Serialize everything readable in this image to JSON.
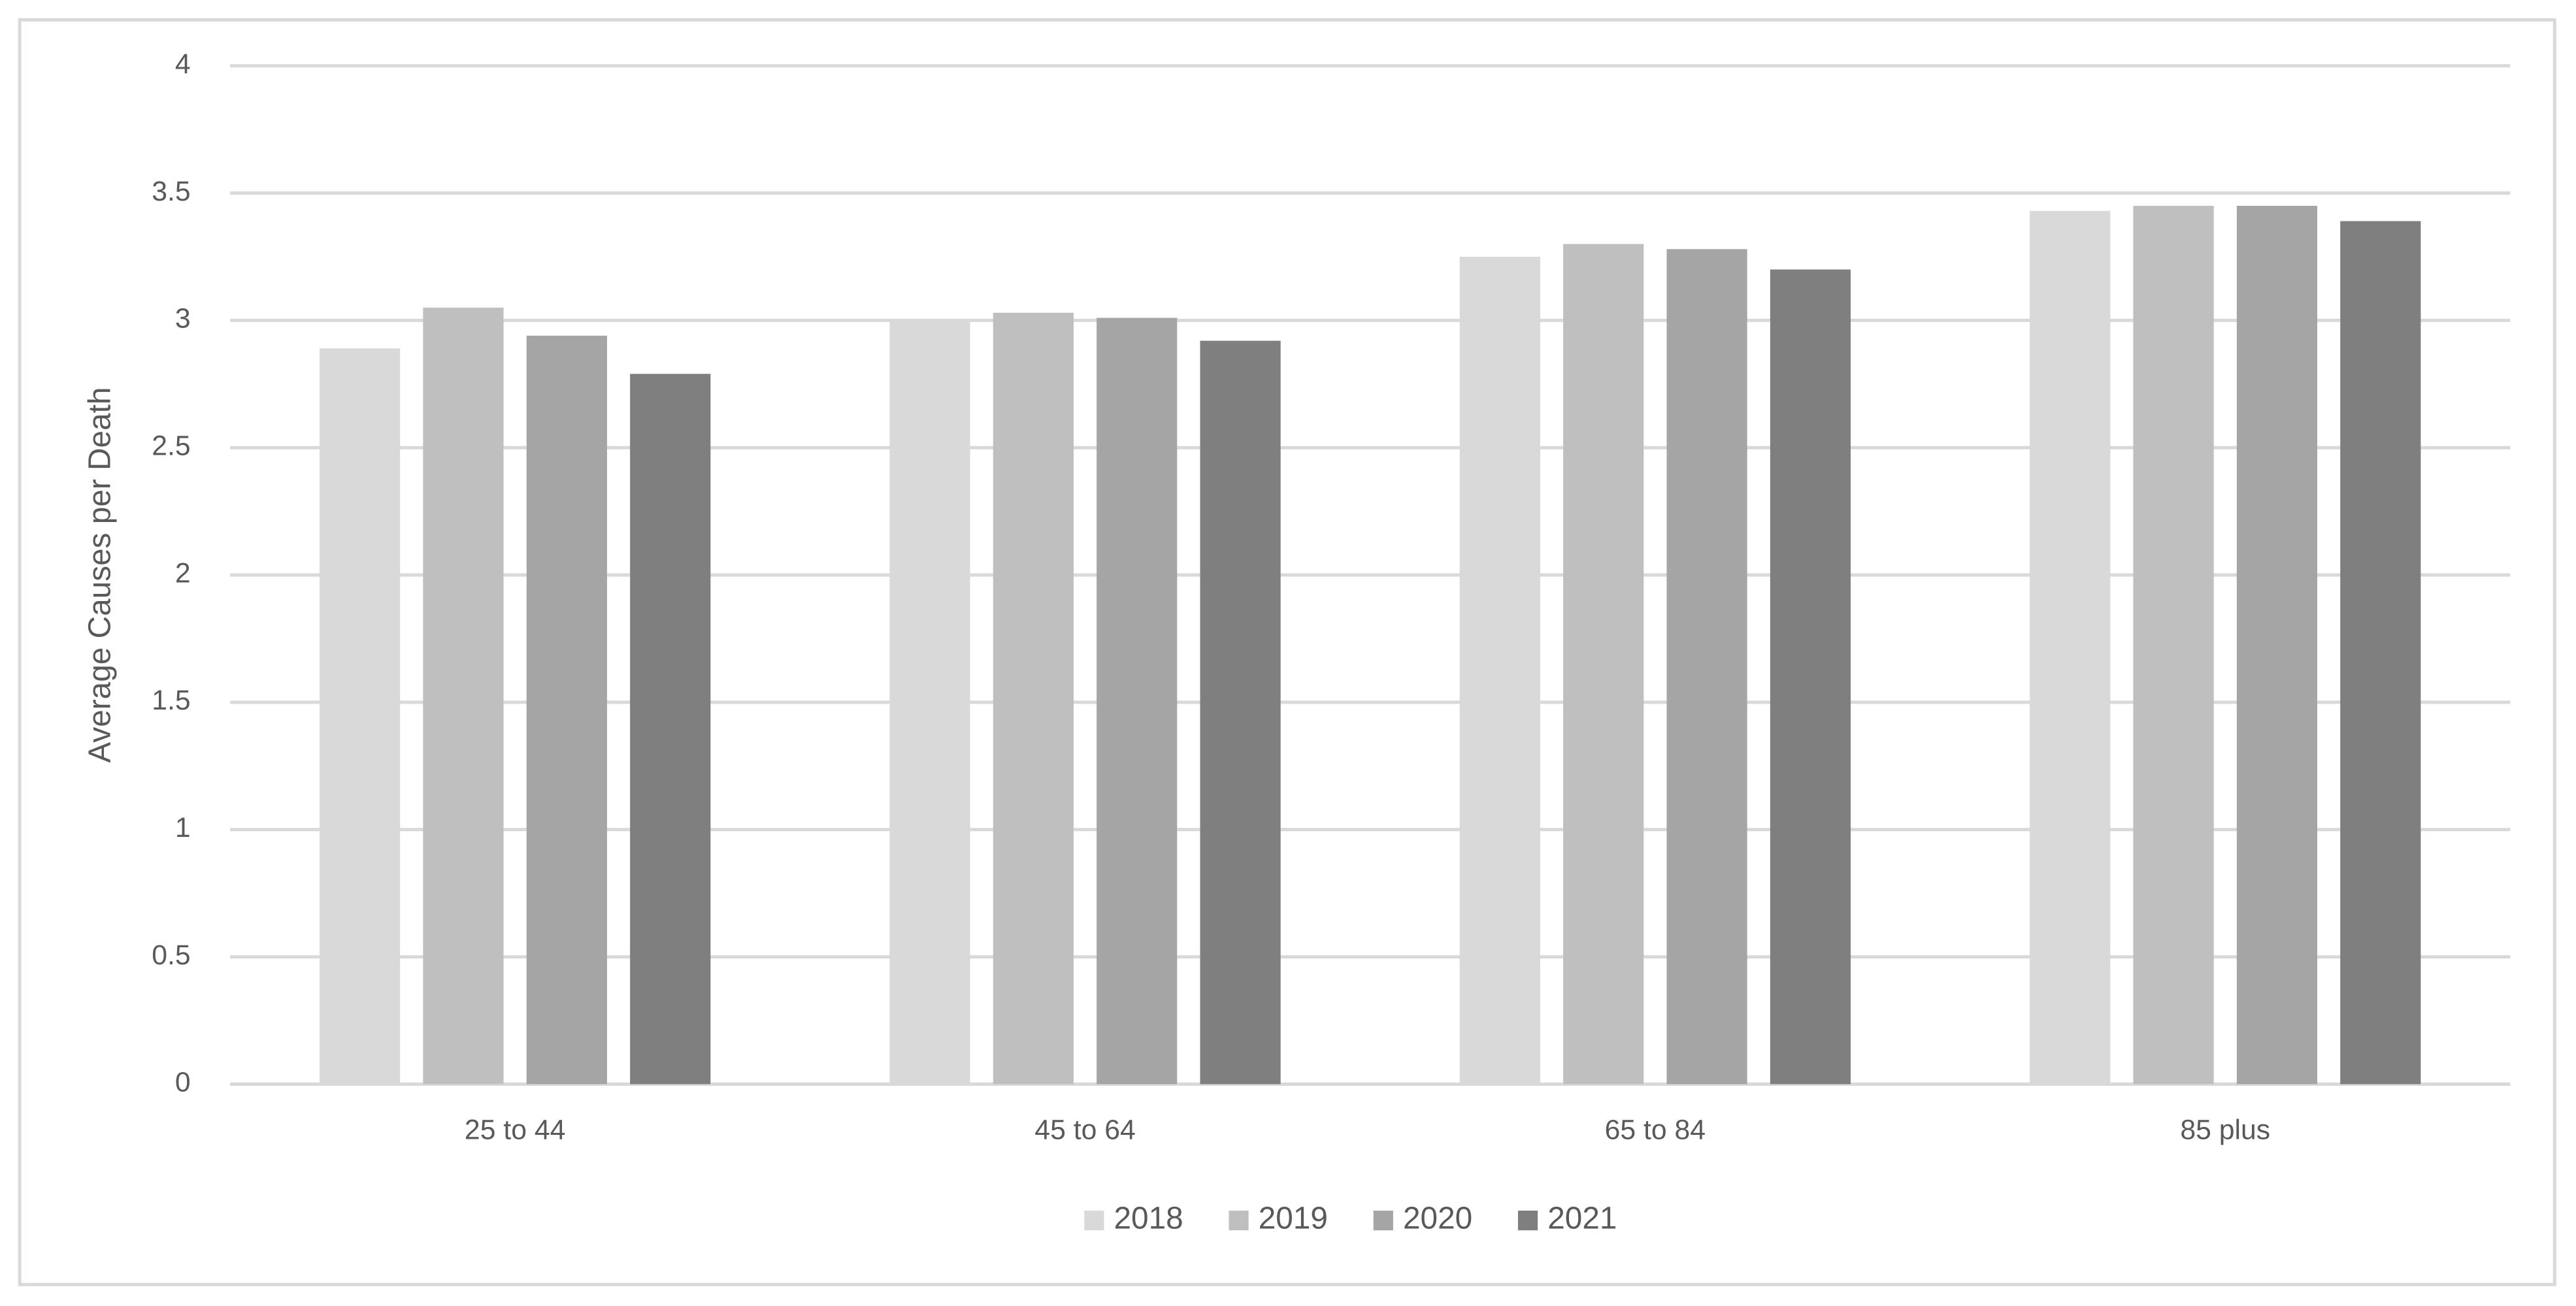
{
  "chart_data": {
    "type": "bar",
    "y_label": "Average Causes per Death",
    "categories": [
      "25 to 44",
      "45 to 64",
      "65 to 84",
      "85 plus"
    ],
    "series": [
      {
        "name": "2018",
        "color": "#d9d9d9",
        "values": [
          2.89,
          3.0,
          3.25,
          3.43
        ]
      },
      {
        "name": "2019",
        "color": "#bfbfbf",
        "values": [
          3.05,
          3.03,
          3.3,
          3.45
        ]
      },
      {
        "name": "2020",
        "color": "#a5a5a5",
        "values": [
          2.94,
          3.01,
          3.28,
          3.45
        ]
      },
      {
        "name": "2021",
        "color": "#7f7f7f",
        "values": [
          2.79,
          2.92,
          3.2,
          3.39
        ]
      }
    ],
    "ylim": [
      0,
      4
    ],
    "yticks": [
      0,
      0.5,
      1,
      1.5,
      2,
      2.5,
      3,
      3.5,
      4
    ],
    "grid": true,
    "legend": "bottom"
  }
}
